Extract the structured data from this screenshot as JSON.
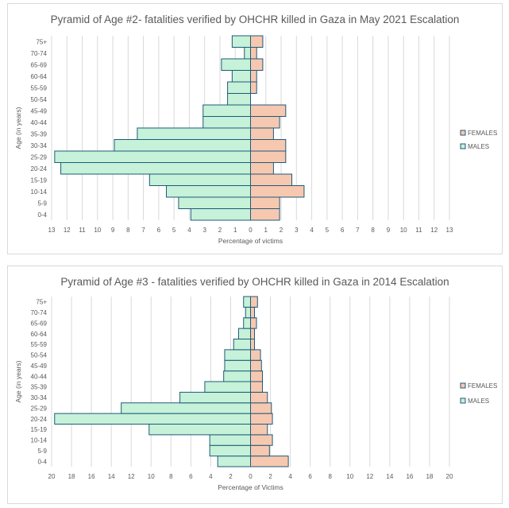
{
  "colors": {
    "males_fill": "#c5f2d8",
    "females_fill": "#f7c8b0",
    "bar_stroke": "#1f5a7a",
    "grid": "#d9d9d9",
    "text": "#595959"
  },
  "chart_data": [
    {
      "type": "bar",
      "orientation": "horizontal",
      "title": "Pyramid of Age #2- fatalities verified by OHCHR killed in Gaza in May 2021 Escalation",
      "xlabel": "Percentage of victims",
      "ylabel": "Age (in years)",
      "categories": [
        "0-4",
        "5-9",
        "10-14",
        "15-19",
        "20-24",
        "25-29",
        "30-34",
        "35-39",
        "40-44",
        "45-49",
        "50-54",
        "55-59",
        "60-64",
        "65-69",
        "70-74",
        "75+"
      ],
      "xlim": [
        -13,
        13
      ],
      "xticks": [
        -13,
        -12,
        -11,
        -10,
        -9,
        -8,
        -7,
        -6,
        -5,
        -4,
        -3,
        -2,
        -1,
        0,
        1,
        2,
        3,
        4,
        5,
        6,
        7,
        8,
        9,
        10,
        11,
        12,
        13
      ],
      "xtick_labels": [
        "13",
        "12",
        "11",
        "10",
        "9",
        "8",
        "7",
        "6",
        "5",
        "4",
        "3",
        "2",
        "1",
        "0",
        "1",
        "2",
        "3",
        "4",
        "5",
        "6",
        "7",
        "8",
        "9",
        "10",
        "11",
        "12",
        "13"
      ],
      "grid": true,
      "legend_position": "right",
      "series": [
        {
          "name": "FEMALES",
          "values": [
            1.9,
            1.9,
            3.5,
            2.7,
            1.5,
            2.3,
            2.3,
            1.5,
            1.9,
            2.3,
            0,
            0.4,
            0.4,
            0.8,
            0.4,
            0.8
          ]
        },
        {
          "name": "MALES",
          "values": [
            -3.9,
            -4.7,
            -5.5,
            -6.6,
            -12.4,
            -12.8,
            -8.9,
            -7.4,
            -3.1,
            -3.1,
            -1.5,
            -1.5,
            -1.2,
            -1.9,
            -0.4,
            -1.2
          ]
        }
      ]
    },
    {
      "type": "bar",
      "orientation": "horizontal",
      "title": "Pyramid of Age #3 - fatalities verified by OHCHR killed in Gaza in 2014 Escalation",
      "xlabel": "Percentage of Victims",
      "ylabel": "Age (in years)",
      "categories": [
        "0-4",
        "5-9",
        "10-14",
        "15-19",
        "20-24",
        "25-29",
        "30-34",
        "35-39",
        "40-44",
        "45-49",
        "50-54",
        "55-59",
        "60-64",
        "65-69",
        "70-74",
        "75+"
      ],
      "xlim": [
        -20,
        20
      ],
      "xticks": [
        -20,
        -18,
        -16,
        -14,
        -12,
        -10,
        -8,
        -6,
        -4,
        -2,
        0,
        2,
        4,
        6,
        8,
        10,
        12,
        14,
        16,
        18,
        20
      ],
      "xtick_labels": [
        "20",
        "18",
        "16",
        "14",
        "12",
        "10",
        "8",
        "6",
        "4",
        "2",
        "0",
        "2",
        "4",
        "6",
        "8",
        "10",
        "12",
        "14",
        "16",
        "18",
        "20"
      ],
      "grid": true,
      "legend_position": "right",
      "series": [
        {
          "name": "FEMALES",
          "values": [
            3.8,
            1.9,
            2.2,
            1.7,
            2.2,
            2.1,
            1.7,
            1.2,
            1.2,
            1.1,
            1.0,
            0.4,
            0.4,
            0.6,
            0.4,
            0.7
          ]
        },
        {
          "name": "MALES",
          "values": [
            -3.3,
            -4.1,
            -4.1,
            -10.2,
            -19.7,
            -13.0,
            -7.1,
            -4.6,
            -2.7,
            -2.6,
            -2.6,
            -1.7,
            -1.2,
            -0.7,
            -0.5,
            -0.7
          ]
        }
      ]
    }
  ]
}
